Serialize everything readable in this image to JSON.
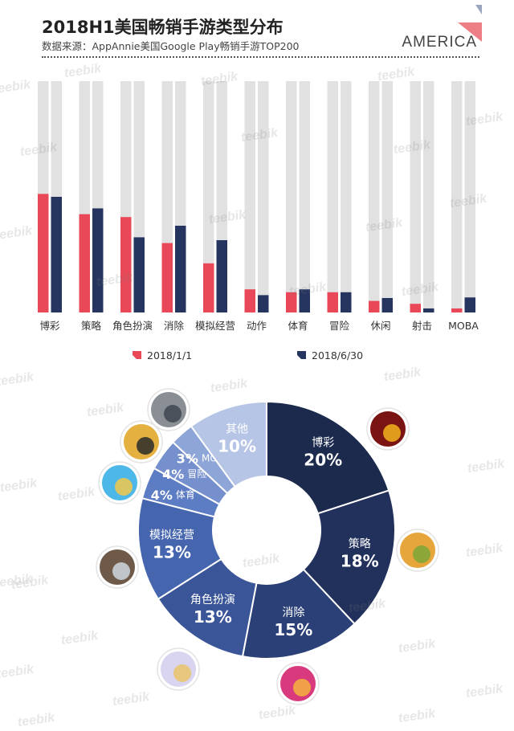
{
  "header": {
    "title": "2018H1美国畅销手游类型分布",
    "subtitle": "数据来源：AppAnnie美国Google Play畅销手游TOP200",
    "brand": "AMERICA"
  },
  "watermark_text": "teebik",
  "colors": {
    "series_2018_1_1": "#e84857",
    "series_2018_6_30": "#253560",
    "track": "#e1e1e1",
    "donut": [
      "#1c2a4e",
      "#22315c",
      "#2b4077",
      "#3a5598",
      "#4566ae",
      "#5c7cc4",
      "#7590cd",
      "#8ea5d7",
      "#b6c4e6"
    ]
  },
  "chart_data": [
    {
      "type": "bar",
      "categories": [
        "博彩",
        "策略",
        "角色扮演",
        "消除",
        "模拟经营",
        "动作",
        "体育",
        "冒险",
        "休闲",
        "射击",
        "MOBA"
      ],
      "series": [
        {
          "name": "2018/1/1",
          "values": [
            20.5,
            17.0,
            16.5,
            12.0,
            8.5,
            4.0,
            3.5,
            3.5,
            2.0,
            1.5,
            0.7
          ]
        },
        {
          "name": "2018/6/30",
          "values": [
            20.0,
            18.0,
            13.0,
            15.0,
            12.5,
            3.0,
            4.0,
            3.5,
            2.5,
            0.7,
            2.6
          ]
        }
      ],
      "ylim": [
        0,
        40
      ],
      "grid": false,
      "legend": "bottom"
    },
    {
      "type": "pie",
      "style": "donut",
      "slices": [
        {
          "label": "博彩",
          "value": 20,
          "display": "20%"
        },
        {
          "label": "策略",
          "value": 18,
          "display": "18%"
        },
        {
          "label": "消除",
          "value": 15,
          "display": "15%"
        },
        {
          "label": "角色扮演",
          "value": 13,
          "display": "13%"
        },
        {
          "label": "模拟经营",
          "value": 13,
          "display": "13%"
        },
        {
          "label": "体育",
          "value": 4,
          "display": "4%"
        },
        {
          "label": "冒险",
          "value": 4,
          "display": "4%"
        },
        {
          "label": "MOBA",
          "value": 3,
          "display": "3%"
        },
        {
          "label": "其他",
          "value": 10,
          "display": "10%"
        }
      ]
    }
  ]
}
